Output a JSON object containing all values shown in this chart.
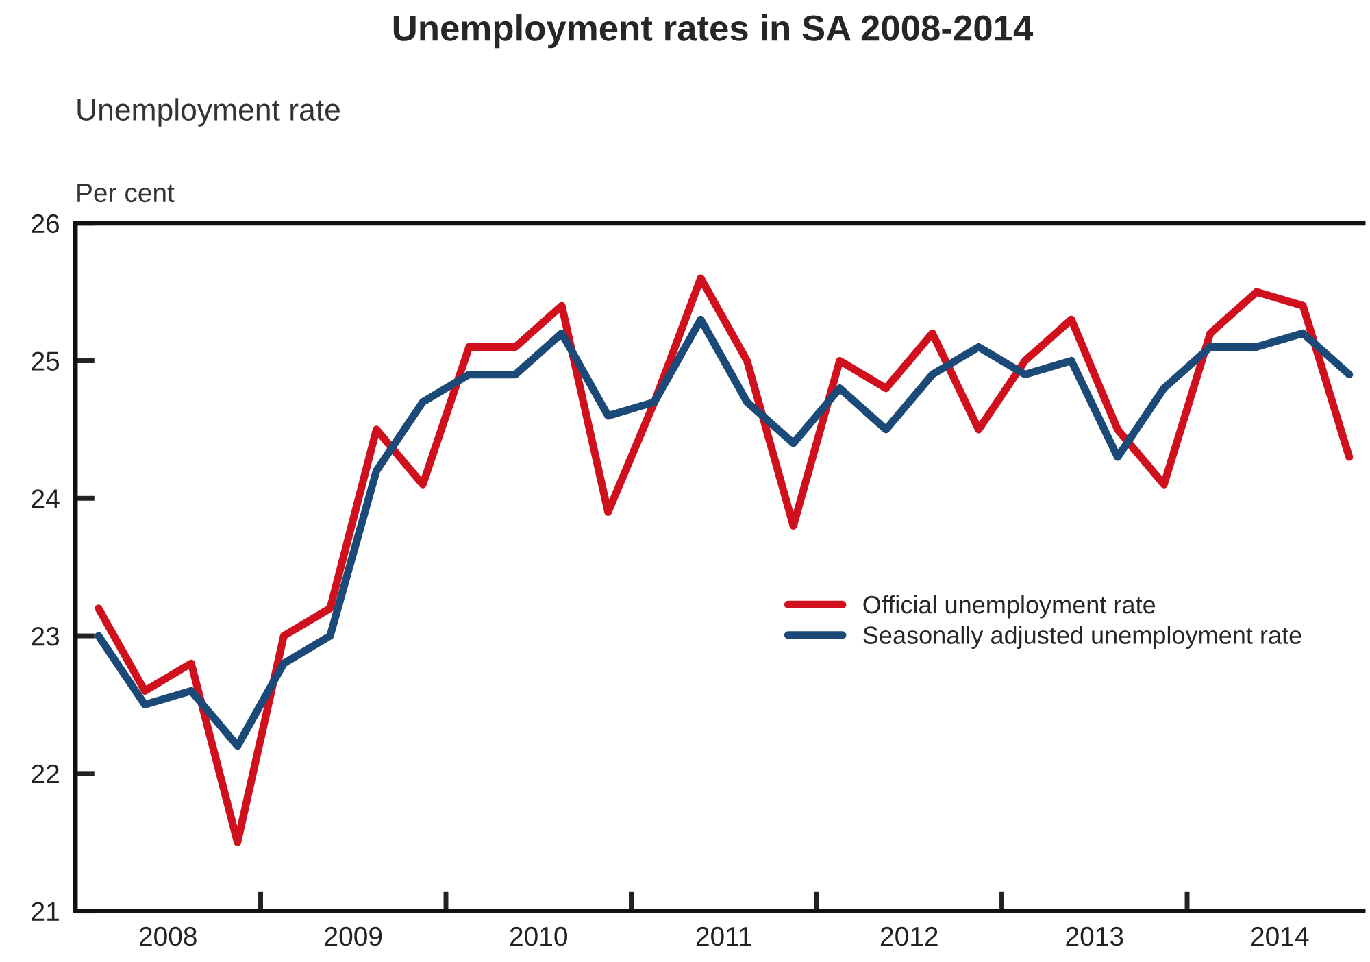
{
  "chart_data": {
    "type": "line",
    "title": "Unemployment rates in SA 2008-2014",
    "subtitle": "Unemployment rate",
    "ylabel": "Per cent",
    "x": [
      2008.125,
      2008.375,
      2008.625,
      2008.875,
      2009.125,
      2009.375,
      2009.625,
      2009.875,
      2010.125,
      2010.375,
      2010.625,
      2010.875,
      2011.125,
      2011.375,
      2011.625,
      2011.875,
      2012.125,
      2012.375,
      2012.625,
      2012.875,
      2013.125,
      2013.375,
      2013.625,
      2013.875,
      2014.125,
      2014.375,
      2014.625,
      2014.875
    ],
    "series": [
      {
        "name": "Official unemployment rate",
        "color": "#d0101c",
        "values": [
          23.2,
          22.6,
          22.8,
          21.5,
          23.0,
          23.2,
          24.5,
          24.1,
          25.1,
          25.1,
          25.4,
          23.9,
          24.7,
          25.6,
          25.0,
          23.8,
          25.0,
          24.8,
          25.2,
          24.5,
          25.0,
          25.3,
          24.5,
          24.1,
          25.2,
          25.5,
          25.4,
          24.3
        ]
      },
      {
        "name": "Seasonally adjusted unemployment rate",
        "color": "#1b4a78",
        "values": [
          23.0,
          22.5,
          22.6,
          22.2,
          22.8,
          23.0,
          24.2,
          24.7,
          24.9,
          24.9,
          25.2,
          24.6,
          24.7,
          25.3,
          24.7,
          24.4,
          24.8,
          24.5,
          24.9,
          25.1,
          24.9,
          25.0,
          24.3,
          24.8,
          25.1,
          25.1,
          25.2,
          24.9
        ]
      }
    ],
    "xlim": [
      2008,
      2014.95
    ],
    "xticks": [
      {
        "value": 2008.5,
        "label": "2008"
      },
      {
        "value": 2009,
        "label": null
      },
      {
        "value": 2009.5,
        "label": "2009"
      },
      {
        "value": 2010,
        "label": null
      },
      {
        "value": 2010.5,
        "label": "2010"
      },
      {
        "value": 2011,
        "label": null
      },
      {
        "value": 2011.5,
        "label": "2011"
      },
      {
        "value": 2012,
        "label": null
      },
      {
        "value": 2012.5,
        "label": "2012"
      },
      {
        "value": 2013,
        "label": null
      },
      {
        "value": 2013.5,
        "label": "2013"
      },
      {
        "value": 2014,
        "label": null
      },
      {
        "value": 2014.5,
        "label": "2014"
      }
    ],
    "ylim": [
      21,
      26
    ],
    "yticks": [
      21,
      22,
      23,
      24,
      25,
      26
    ],
    "grid": false,
    "legend": "center right",
    "marker": "none",
    "line_style": "solid"
  }
}
